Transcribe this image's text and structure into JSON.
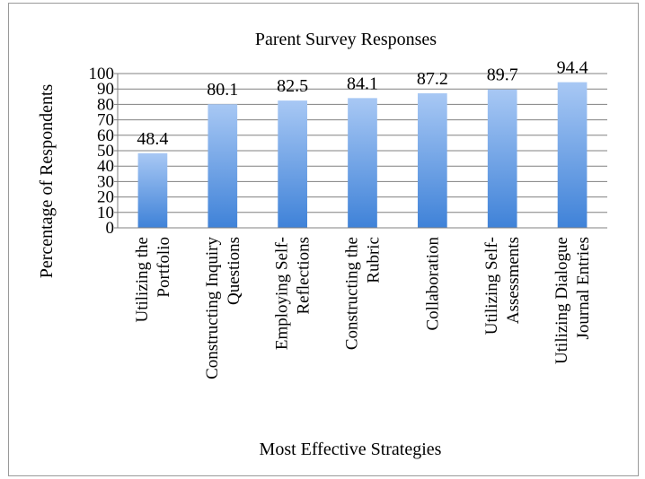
{
  "chart_data": {
    "type": "bar",
    "title": "Parent Survey Responses",
    "xlabel": "Most Effective Strategies",
    "ylabel": "Percentage of Respondents",
    "ylim": [
      0,
      100
    ],
    "yticks": [
      0,
      10,
      20,
      30,
      40,
      50,
      60,
      70,
      80,
      90,
      100
    ],
    "grid": true,
    "legend": "none",
    "categories": [
      [
        "Utilizing the",
        "Portfolio"
      ],
      [
        "Constructing Inquiry",
        "Questions"
      ],
      [
        "Employing Self-",
        "Reflections"
      ],
      [
        "Constructing the",
        "Rubric"
      ],
      [
        "Collaboration"
      ],
      [
        "Utilizing Self-",
        "Assessments"
      ],
      [
        "Utilizing Dialogue",
        "Journal Entries"
      ]
    ],
    "values": [
      48.4,
      80.1,
      82.5,
      84.1,
      87.2,
      89.7,
      94.4
    ],
    "data_labels": [
      "48.4",
      "80.1",
      "82.5",
      "84.1",
      "87.2",
      "89.7",
      "94.4"
    ],
    "colors": {
      "bar_top": "#a8c8f4",
      "bar_bottom": "#3f82d8",
      "grid": "#808080",
      "axis": "#808080"
    }
  }
}
